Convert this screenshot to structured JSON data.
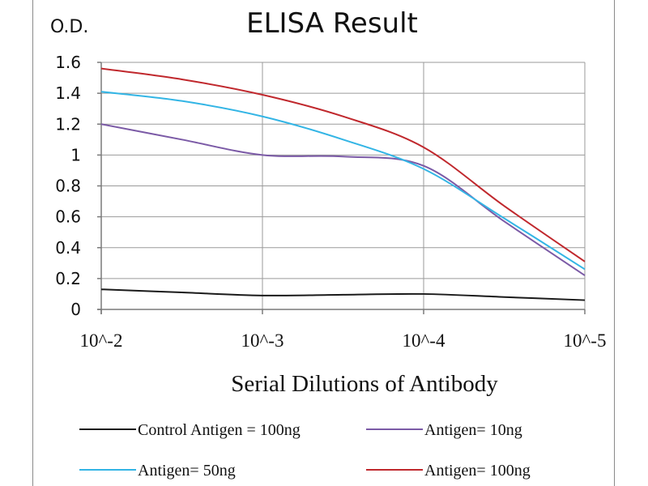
{
  "chart_data": {
    "type": "line",
    "title": "ELISA Result",
    "ylabel": "O.D.",
    "xlabel": "Serial Dilutions  of Antibody",
    "x": [
      "10^-2",
      "10^-3",
      "10^-4",
      "10^-5"
    ],
    "x_mid": [
      2.5,
      3.5,
      4.5
    ],
    "ylim": [
      0,
      1.6
    ],
    "yticks": [
      "0",
      "0.2",
      "0.4",
      "0.6",
      "0.8",
      "1",
      "1.2",
      "1.4",
      "1.6"
    ],
    "grid": true,
    "legend_position": "bottom",
    "series": [
      {
        "name": "Control Antigen = 100ng",
        "color": "#1a1a1a",
        "values": [
          0.13,
          0.09,
          0.1,
          0.06
        ],
        "mid": [
          0.11,
          0.095,
          0.08
        ]
      },
      {
        "name": "Antigen= 10ng",
        "color": "#7b5aa6",
        "values": [
          1.2,
          1.0,
          0.93,
          0.22
        ],
        "mid": [
          1.1,
          0.99,
          0.57
        ]
      },
      {
        "name": "Antigen= 50ng",
        "color": "#33b5e5",
        "values": [
          1.41,
          1.25,
          0.91,
          0.26
        ],
        "mid": [
          1.35,
          1.1,
          0.59
        ]
      },
      {
        "name": "Antigen= 100ng",
        "color": "#c0282d",
        "values": [
          1.56,
          1.39,
          1.05,
          0.31
        ],
        "mid": [
          1.49,
          1.25,
          0.67
        ]
      }
    ]
  }
}
